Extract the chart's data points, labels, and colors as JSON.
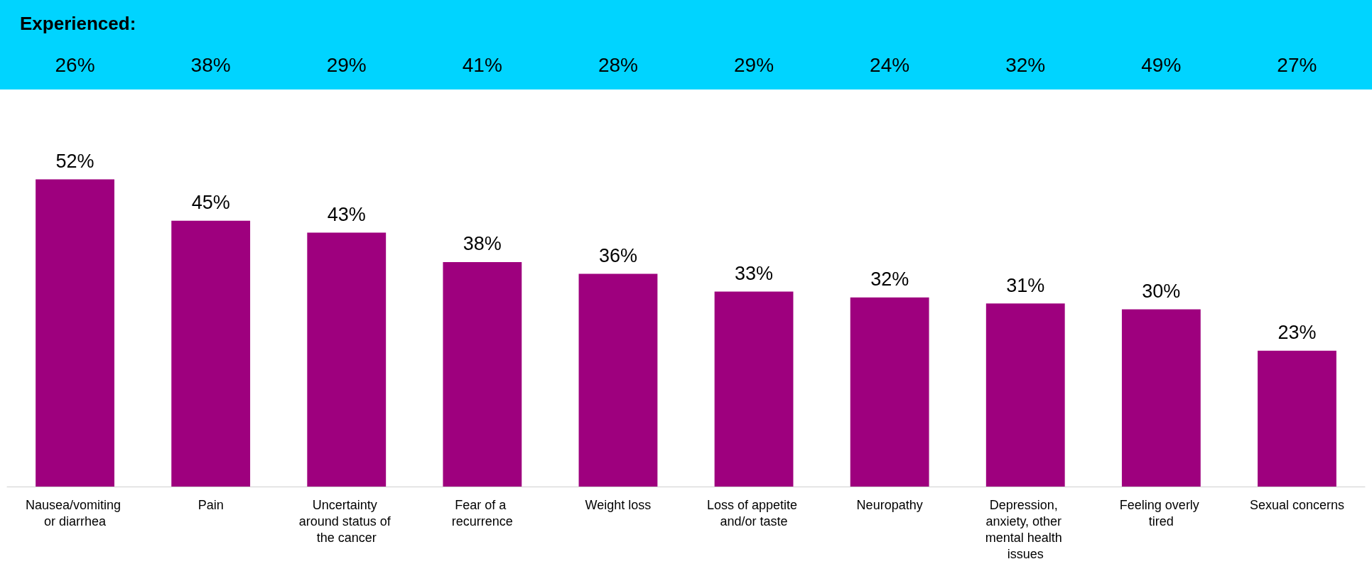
{
  "chart_data": [
    {
      "type": "other",
      "title": "Experienced:",
      "color": "#00d4ff",
      "value_labels": [
        "26%",
        "38%",
        "29%",
        "41%",
        "28%",
        "29%",
        "24%",
        "32%",
        "49%",
        "27%"
      ]
    },
    {
      "type": "bar",
      "categories": [
        "Nausea/vomiting or diarrhea",
        "Pain",
        "Uncertainty around status of the cancer",
        "Fear of a recurrence",
        "Weight loss",
        "Loss of appetite and/or taste",
        "Neuropathy",
        "Depression, anxiety, other mental health issues",
        "Feeling overly tired",
        "Sexual concerns"
      ],
      "values": [
        52,
        45,
        43,
        38,
        36,
        33,
        32,
        31,
        30,
        23
      ],
      "value_labels": [
        "52%",
        "45%",
        "43%",
        "38%",
        "36%",
        "33%",
        "32%",
        "31%",
        "30%",
        "23%"
      ],
      "color": "#9e007e"
    }
  ]
}
